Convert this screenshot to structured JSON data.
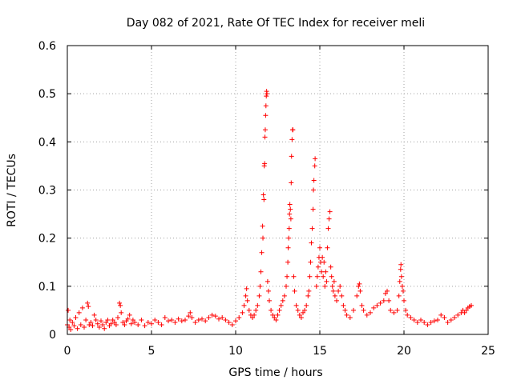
{
  "chart_data": {
    "type": "scatter",
    "title": "Day 082 of 2021, Rate Of TEC Index for receiver meli",
    "xlabel": "GPS time / hours",
    "ylabel": "ROTI / TECUs",
    "xlim": [
      0,
      25
    ],
    "ylim": [
      0,
      0.6
    ],
    "xticks": [
      0,
      5,
      10,
      15,
      20,
      25
    ],
    "xtick_labels": [
      "0",
      "5",
      "10",
      "15",
      "20",
      "25"
    ],
    "yticks": [
      0,
      0.1,
      0.2,
      0.3,
      0.4,
      0.5,
      0.6
    ],
    "ytick_labels": [
      "0",
      "0.1",
      "0.2",
      "0.3",
      "0.4",
      "0.5",
      "0.6"
    ],
    "grid": true,
    "marker": "+",
    "series": [
      {
        "name": "ROTI",
        "color": "#ff0000",
        "points": [
          [
            0.0,
            0.02
          ],
          [
            0.05,
            0.05
          ],
          [
            0.1,
            0.015
          ],
          [
            0.15,
            0.03
          ],
          [
            0.2,
            0.01
          ],
          [
            0.3,
            0.025
          ],
          [
            0.4,
            0.018
          ],
          [
            0.5,
            0.035
          ],
          [
            0.6,
            0.012
          ],
          [
            0.7,
            0.045
          ],
          [
            0.8,
            0.02
          ],
          [
            0.9,
            0.055
          ],
          [
            1.0,
            0.015
          ],
          [
            1.1,
            0.03
          ],
          [
            1.2,
            0.065
          ],
          [
            1.25,
            0.058
          ],
          [
            1.3,
            0.02
          ],
          [
            1.4,
            0.025
          ],
          [
            1.5,
            0.018
          ],
          [
            1.6,
            0.04
          ],
          [
            1.7,
            0.03
          ],
          [
            1.8,
            0.022
          ],
          [
            1.9,
            0.015
          ],
          [
            2.0,
            0.028
          ],
          [
            2.1,
            0.02
          ],
          [
            2.2,
            0.012
          ],
          [
            2.3,
            0.025
          ],
          [
            2.4,
            0.03
          ],
          [
            2.5,
            0.018
          ],
          [
            2.6,
            0.022
          ],
          [
            2.7,
            0.03
          ],
          [
            2.8,
            0.025
          ],
          [
            2.9,
            0.02
          ],
          [
            3.0,
            0.035
          ],
          [
            3.1,
            0.065
          ],
          [
            3.15,
            0.06
          ],
          [
            3.2,
            0.045
          ],
          [
            3.3,
            0.025
          ],
          [
            3.4,
            0.02
          ],
          [
            3.5,
            0.028
          ],
          [
            3.6,
            0.032
          ],
          [
            3.7,
            0.04
          ],
          [
            3.8,
            0.022
          ],
          [
            3.9,
            0.03
          ],
          [
            4.0,
            0.025
          ],
          [
            4.2,
            0.02
          ],
          [
            4.4,
            0.03
          ],
          [
            4.6,
            0.018
          ],
          [
            4.8,
            0.025
          ],
          [
            5.0,
            0.022
          ],
          [
            5.2,
            0.03
          ],
          [
            5.4,
            0.025
          ],
          [
            5.6,
            0.02
          ],
          [
            5.8,
            0.035
          ],
          [
            6.0,
            0.028
          ],
          [
            6.2,
            0.03
          ],
          [
            6.4,
            0.025
          ],
          [
            6.6,
            0.032
          ],
          [
            6.8,
            0.028
          ],
          [
            7.0,
            0.03
          ],
          [
            7.2,
            0.038
          ],
          [
            7.3,
            0.045
          ],
          [
            7.4,
            0.035
          ],
          [
            7.6,
            0.025
          ],
          [
            7.8,
            0.03
          ],
          [
            8.0,
            0.032
          ],
          [
            8.2,
            0.028
          ],
          [
            8.4,
            0.035
          ],
          [
            8.6,
            0.04
          ],
          [
            8.8,
            0.038
          ],
          [
            9.0,
            0.032
          ],
          [
            9.2,
            0.035
          ],
          [
            9.4,
            0.03
          ],
          [
            9.6,
            0.025
          ],
          [
            9.8,
            0.02
          ],
          [
            10.0,
            0.028
          ],
          [
            10.2,
            0.035
          ],
          [
            10.4,
            0.045
          ],
          [
            10.5,
            0.06
          ],
          [
            10.6,
            0.08
          ],
          [
            10.65,
            0.095
          ],
          [
            10.7,
            0.07
          ],
          [
            10.8,
            0.05
          ],
          [
            10.9,
            0.04
          ],
          [
            11.0,
            0.035
          ],
          [
            11.1,
            0.04
          ],
          [
            11.2,
            0.05
          ],
          [
            11.3,
            0.06
          ],
          [
            11.4,
            0.08
          ],
          [
            11.45,
            0.1
          ],
          [
            11.5,
            0.13
          ],
          [
            11.55,
            0.17
          ],
          [
            11.6,
            0.225
          ],
          [
            11.62,
            0.2
          ],
          [
            11.65,
            0.29
          ],
          [
            11.68,
            0.28
          ],
          [
            11.7,
            0.35
          ],
          [
            11.72,
            0.355
          ],
          [
            11.74,
            0.41
          ],
          [
            11.76,
            0.425
          ],
          [
            11.78,
            0.455
          ],
          [
            11.8,
            0.475
          ],
          [
            11.82,
            0.495
          ],
          [
            11.84,
            0.505
          ],
          [
            11.86,
            0.5
          ],
          [
            11.9,
            0.11
          ],
          [
            11.95,
            0.09
          ],
          [
            12.0,
            0.07
          ],
          [
            12.1,
            0.05
          ],
          [
            12.2,
            0.04
          ],
          [
            12.3,
            0.035
          ],
          [
            12.4,
            0.03
          ],
          [
            12.5,
            0.04
          ],
          [
            12.6,
            0.05
          ],
          [
            12.7,
            0.06
          ],
          [
            12.8,
            0.07
          ],
          [
            12.9,
            0.08
          ],
          [
            13.0,
            0.1
          ],
          [
            13.05,
            0.12
          ],
          [
            13.1,
            0.15
          ],
          [
            13.12,
            0.18
          ],
          [
            13.15,
            0.2
          ],
          [
            13.18,
            0.22
          ],
          [
            13.2,
            0.25
          ],
          [
            13.22,
            0.27
          ],
          [
            13.25,
            0.26
          ],
          [
            13.28,
            0.24
          ],
          [
            13.3,
            0.315
          ],
          [
            13.32,
            0.37
          ],
          [
            13.35,
            0.405
          ],
          [
            13.38,
            0.425
          ],
          [
            13.4,
            0.425
          ],
          [
            13.45,
            0.12
          ],
          [
            13.5,
            0.09
          ],
          [
            13.6,
            0.06
          ],
          [
            13.7,
            0.05
          ],
          [
            13.8,
            0.04
          ],
          [
            13.9,
            0.035
          ],
          [
            14.0,
            0.045
          ],
          [
            14.1,
            0.05
          ],
          [
            14.2,
            0.06
          ],
          [
            14.3,
            0.08
          ],
          [
            14.35,
            0.09
          ],
          [
            14.4,
            0.12
          ],
          [
            14.45,
            0.15
          ],
          [
            14.5,
            0.19
          ],
          [
            14.55,
            0.22
          ],
          [
            14.6,
            0.26
          ],
          [
            14.62,
            0.3
          ],
          [
            14.65,
            0.32
          ],
          [
            14.7,
            0.35
          ],
          [
            14.72,
            0.365
          ],
          [
            14.8,
            0.1
          ],
          [
            14.85,
            0.12
          ],
          [
            14.9,
            0.14
          ],
          [
            14.95,
            0.16
          ],
          [
            15.0,
            0.18
          ],
          [
            15.05,
            0.15
          ],
          [
            15.1,
            0.13
          ],
          [
            15.15,
            0.16
          ],
          [
            15.2,
            0.12
          ],
          [
            15.25,
            0.15
          ],
          [
            15.3,
            0.1
          ],
          [
            15.35,
            0.13
          ],
          [
            15.4,
            0.11
          ],
          [
            15.45,
            0.18
          ],
          [
            15.5,
            0.22
          ],
          [
            15.55,
            0.24
          ],
          [
            15.6,
            0.255
          ],
          [
            15.65,
            0.14
          ],
          [
            15.7,
            0.12
          ],
          [
            15.75,
            0.1
          ],
          [
            15.8,
            0.09
          ],
          [
            15.85,
            0.11
          ],
          [
            15.9,
            0.08
          ],
          [
            16.0,
            0.07
          ],
          [
            16.1,
            0.09
          ],
          [
            16.2,
            0.1
          ],
          [
            16.3,
            0.08
          ],
          [
            16.4,
            0.06
          ],
          [
            16.5,
            0.05
          ],
          [
            16.6,
            0.04
          ],
          [
            16.8,
            0.035
          ],
          [
            17.0,
            0.05
          ],
          [
            17.2,
            0.08
          ],
          [
            17.3,
            0.1
          ],
          [
            17.35,
            0.105
          ],
          [
            17.4,
            0.09
          ],
          [
            17.5,
            0.06
          ],
          [
            17.6,
            0.05
          ],
          [
            17.8,
            0.04
          ],
          [
            18.0,
            0.045
          ],
          [
            18.2,
            0.055
          ],
          [
            18.4,
            0.06
          ],
          [
            18.6,
            0.065
          ],
          [
            18.8,
            0.07
          ],
          [
            18.9,
            0.085
          ],
          [
            19.0,
            0.09
          ],
          [
            19.1,
            0.07
          ],
          [
            19.2,
            0.05
          ],
          [
            19.4,
            0.045
          ],
          [
            19.6,
            0.05
          ],
          [
            19.7,
            0.08
          ],
          [
            19.75,
            0.11
          ],
          [
            19.8,
            0.135
          ],
          [
            19.82,
            0.145
          ],
          [
            19.85,
            0.12
          ],
          [
            19.9,
            0.1
          ],
          [
            19.95,
            0.09
          ],
          [
            20.0,
            0.07
          ],
          [
            20.1,
            0.05
          ],
          [
            20.2,
            0.04
          ],
          [
            20.4,
            0.035
          ],
          [
            20.6,
            0.03
          ],
          [
            20.8,
            0.025
          ],
          [
            21.0,
            0.03
          ],
          [
            21.2,
            0.025
          ],
          [
            21.4,
            0.02
          ],
          [
            21.6,
            0.025
          ],
          [
            21.8,
            0.028
          ],
          [
            22.0,
            0.03
          ],
          [
            22.2,
            0.04
          ],
          [
            22.4,
            0.035
          ],
          [
            22.6,
            0.025
          ],
          [
            22.8,
            0.03
          ],
          [
            23.0,
            0.035
          ],
          [
            23.2,
            0.04
          ],
          [
            23.4,
            0.045
          ],
          [
            23.5,
            0.05
          ],
          [
            23.6,
            0.045
          ],
          [
            23.7,
            0.05
          ],
          [
            23.8,
            0.055
          ],
          [
            23.9,
            0.058
          ],
          [
            24.0,
            0.06
          ]
        ]
      }
    ]
  }
}
